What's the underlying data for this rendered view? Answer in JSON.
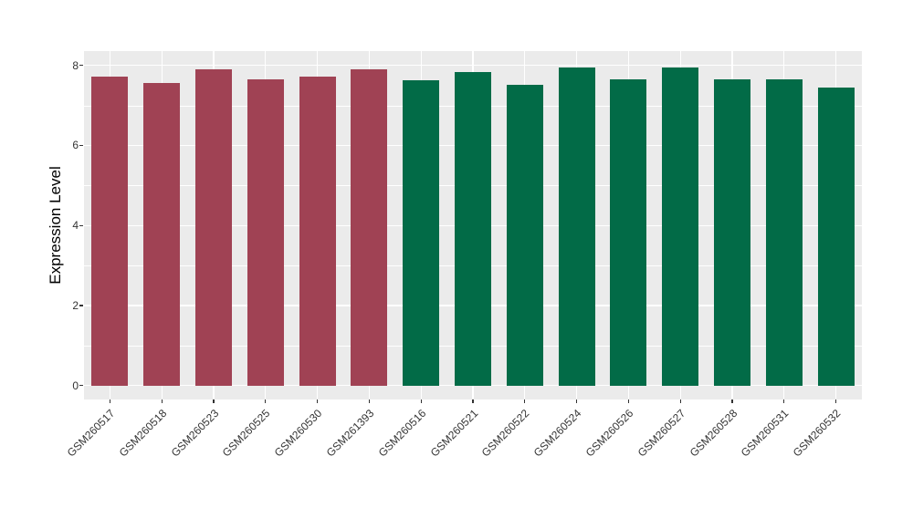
{
  "chart_data": {
    "type": "bar",
    "title": "",
    "xlabel": "",
    "ylabel": "Expression Level",
    "ylim": [
      0,
      8.4
    ],
    "y_major_ticks": [
      0,
      2,
      4,
      6,
      8
    ],
    "y_minor_ticks": [
      1,
      3,
      5,
      7
    ],
    "grid": true,
    "legend_position": "none",
    "categories": [
      "GSM260517",
      "GSM260518",
      "GSM260523",
      "GSM260525",
      "GSM260530",
      "GSM261393",
      "GSM260516",
      "GSM260521",
      "GSM260522",
      "GSM260524",
      "GSM260526",
      "GSM260527",
      "GSM260528",
      "GSM260531",
      "GSM260532"
    ],
    "values": [
      7.72,
      7.55,
      7.91,
      7.64,
      7.72,
      7.91,
      7.62,
      7.84,
      7.51,
      7.94,
      7.66,
      7.94,
      7.66,
      7.66,
      7.45
    ],
    "bar_colors": [
      "#A04254",
      "#A04254",
      "#A04254",
      "#A04254",
      "#A04254",
      "#A04254",
      "#026B47",
      "#026B47",
      "#026B47",
      "#026B47",
      "#026B47",
      "#026B47",
      "#026B47",
      "#026B47",
      "#026B47"
    ]
  },
  "style": {
    "background": "#FFFFFF",
    "panel_bg": "#EBEBEB",
    "grid_color": "#FFFFFF",
    "axis_text_color": "#333333",
    "axis_title_color": "#000000",
    "tick_mark_color": "#333333",
    "maroon": "#A04254",
    "green": "#026B47"
  }
}
